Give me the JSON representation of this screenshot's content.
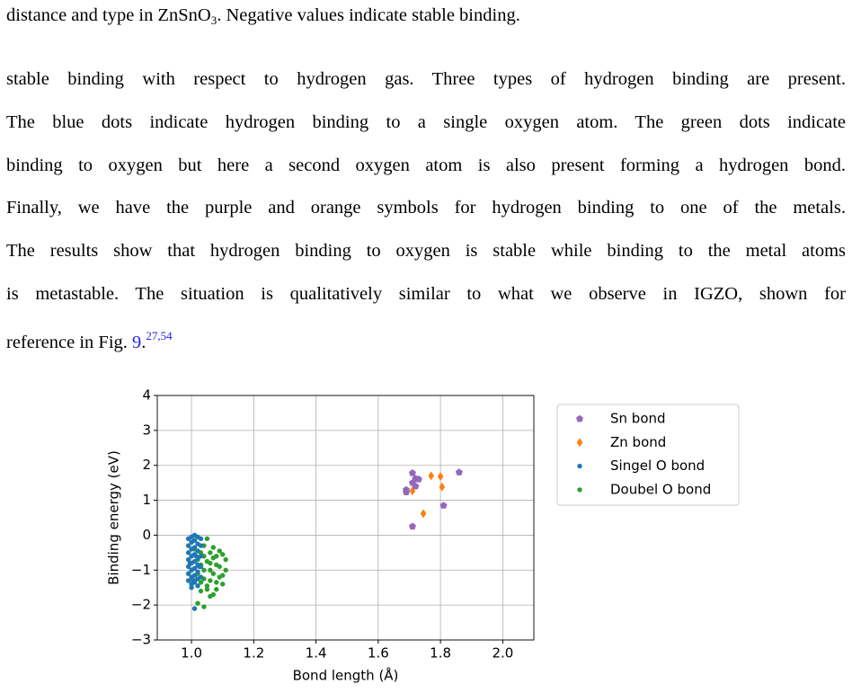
{
  "caption_tail": {
    "before": "distance and type in ZnSnO",
    "subscript": "3",
    "after": ". Negative values indicate stable binding."
  },
  "paragraph": {
    "lines": [
      "stable binding with respect to hydrogen gas. Three types of hydrogen binding are present.",
      "The blue dots indicate hydrogen binding to a single oxygen atom. The green dots indicate",
      "binding to oxygen but here a second oxygen atom is also present forming a hydrogen bond.",
      "Finally, we have the purple and orange symbols for hydrogen binding to one of the metals.",
      "The results show that hydrogen binding to oxygen is stable while binding to the metal atoms",
      "is metastable. The situation is qualitatively similar to what we observe in IGZO, shown for"
    ],
    "last_line": {
      "text": "reference in Fig. ",
      "ref": "9",
      "period": ".",
      "citation": "27,54"
    }
  },
  "chart_data": {
    "type": "scatter",
    "x_label": "Bond length (Å)",
    "y_label": "Binding energy (eV)",
    "xlim": [
      0.89,
      2.1
    ],
    "ylim": [
      -3,
      4
    ],
    "xticks": [
      {
        "value": 1.0,
        "label": "1.0"
      },
      {
        "value": 1.2,
        "label": "1.2"
      },
      {
        "value": 1.4,
        "label": "1.4"
      },
      {
        "value": 1.6,
        "label": "1.6"
      },
      {
        "value": 1.8,
        "label": "1.8"
      },
      {
        "value": 2.0,
        "label": "2.0"
      }
    ],
    "yticks": [
      {
        "value": -3,
        "label": "−3"
      },
      {
        "value": -2,
        "label": "−2"
      },
      {
        "value": -1,
        "label": "−1"
      },
      0,
      1,
      2,
      3,
      4
    ],
    "grid": true,
    "legend": "outside-right",
    "series": [
      {
        "name": "Sn bond",
        "color": "#9467bd",
        "marker": "pentagon",
        "x": [
          1.69,
          1.69,
          1.71,
          1.71,
          1.72,
          1.73,
          1.72,
          1.86,
          1.81,
          1.71
        ],
        "values": [
          1.3,
          1.23,
          1.78,
          1.5,
          1.62,
          1.6,
          1.4,
          1.8,
          0.85,
          0.25
        ]
      },
      {
        "name": "Zn bond",
        "color": "#ff7f0e",
        "marker": "diamond",
        "x": [
          1.71,
          1.77,
          1.8,
          1.805,
          1.745
        ],
        "values": [
          1.27,
          1.7,
          1.68,
          1.38,
          0.62
        ]
      },
      {
        "name": "Singel O bond",
        "color": "#1f77b4",
        "marker": "circle",
        "x": [
          0.99,
          0.99,
          0.99,
          0.99,
          0.99,
          0.99,
          0.99,
          1.0,
          1.0,
          1.0,
          1.0,
          1.0,
          1.0,
          1.0,
          1.0,
          1.0,
          1.01,
          1.01,
          1.01,
          1.01,
          1.01,
          1.01,
          1.01,
          1.01,
          1.01,
          1.02,
          1.02,
          1.02,
          1.02,
          1.02,
          1.02,
          1.02,
          1.02,
          1.03,
          1.03,
          1.03,
          1.03,
          1.03,
          0.995,
          1.005,
          1.015,
          1.025
        ],
        "values": [
          -0.1,
          -0.3,
          -0.5,
          -0.7,
          -0.9,
          -1.1,
          -1.3,
          -0.05,
          -0.2,
          -0.4,
          -0.6,
          -0.8,
          -1.0,
          -1.2,
          -1.4,
          -1.5,
          0.0,
          -0.15,
          -0.35,
          -0.55,
          -0.75,
          -0.95,
          -1.15,
          -1.35,
          -2.1,
          -0.05,
          -0.25,
          -0.45,
          -0.65,
          -0.85,
          -1.05,
          -1.25,
          -1.45,
          -0.1,
          -0.3,
          -0.6,
          -0.9,
          -1.2,
          -0.8,
          -1.3,
          -0.6,
          -0.9
        ]
      },
      {
        "name": "Doubel O bond",
        "color": "#2ca02c",
        "marker": "circle",
        "x": [
          1.02,
          1.04,
          1.06,
          1.07,
          1.05,
          1.08,
          1.1,
          1.09,
          1.11,
          1.1,
          1.08,
          1.06,
          1.05,
          1.07,
          1.04,
          1.03,
          1.02,
          1.03,
          1.04,
          1.05,
          1.06,
          1.07,
          1.08,
          1.09,
          1.06,
          1.04,
          1.03,
          1.02,
          1.01,
          1.0,
          1.01,
          1.05,
          1.07,
          1.09,
          1.11,
          1.04,
          1.06,
          1.03,
          1.08,
          1.1
        ],
        "values": [
          -1.95,
          -2.05,
          -1.75,
          -1.7,
          -1.45,
          -1.35,
          -1.15,
          -0.9,
          -0.7,
          -0.55,
          -0.6,
          -0.5,
          -0.1,
          -0.35,
          -0.3,
          -0.5,
          -0.7,
          -0.85,
          -1.0,
          -0.75,
          -1.0,
          -1.1,
          -0.85,
          -1.2,
          -1.3,
          -1.25,
          -1.35,
          -1.1,
          -1.3,
          -1.0,
          -0.4,
          -1.55,
          -0.65,
          -0.45,
          -1.0,
          -0.6,
          -0.8,
          -1.6,
          -1.55,
          -1.4
        ]
      }
    ]
  }
}
